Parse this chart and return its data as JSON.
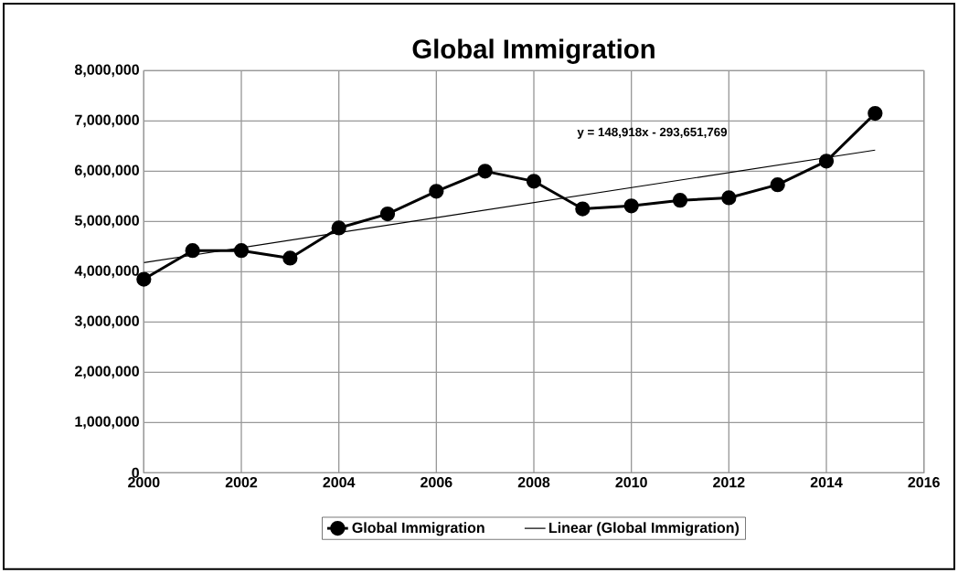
{
  "chart_data": {
    "type": "line",
    "title": "Global Immigration",
    "x": [
      2000,
      2001,
      2002,
      2003,
      2004,
      2005,
      2006,
      2007,
      2008,
      2009,
      2010,
      2011,
      2012,
      2013,
      2014,
      2015
    ],
    "series": [
      {
        "name": "Global Immigration",
        "color": "#000000",
        "marker": "circle",
        "values": [
          3850000,
          4420000,
          4420000,
          4270000,
          4870000,
          5150000,
          5600000,
          6000000,
          5800000,
          5250000,
          5310000,
          5420000,
          5470000,
          5730000,
          6200000,
          7150000
        ]
      },
      {
        "name": "Linear (Global Immigration)",
        "type": "line",
        "color": "#000000",
        "marker": "none",
        "x": [
          2000,
          2015
        ],
        "values": [
          4180000,
          6420000
        ]
      }
    ],
    "xlim": [
      2000,
      2016
    ],
    "xticks": [
      2000,
      2002,
      2004,
      2006,
      2008,
      2010,
      2012,
      2014,
      2016
    ],
    "ylim": [
      0,
      8000000
    ],
    "yticks": [
      0,
      {
        "value": 1000000,
        "label": "1,000,000"
      },
      {
        "value": 2000000,
        "label": "2,000,000"
      },
      {
        "value": 3000000,
        "label": "3,000,000"
      },
      {
        "value": 4000000,
        "label": "4,000,000"
      },
      {
        "value": 5000000,
        "label": "5,000,000"
      },
      {
        "value": 6000000,
        "label": "6,000,000"
      },
      {
        "value": 7000000,
        "label": "7,000,000"
      },
      {
        "value": 8000000,
        "label": "8,000,000"
      }
    ],
    "annotations": [
      "y = 148,918x - 293,651,769"
    ],
    "grid": true,
    "legend": "bottom",
    "line_style": "solid"
  }
}
